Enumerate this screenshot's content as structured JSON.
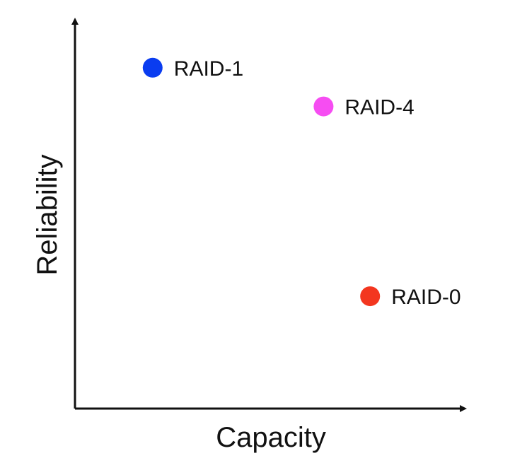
{
  "chart_data": {
    "type": "scatter",
    "xlabel": "Capacity",
    "ylabel": "Reliability",
    "grid": false,
    "xlim": [
      0,
      10
    ],
    "ylim": [
      0,
      10
    ],
    "points": [
      {
        "label": "RAID-1",
        "x": 2.0,
        "y": 8.8,
        "color": "#0a3cf0"
      },
      {
        "label": "RAID-4",
        "x": 6.4,
        "y": 7.8,
        "color": "#f64df2"
      },
      {
        "label": "RAID-0",
        "x": 7.6,
        "y": 2.9,
        "color": "#f3361f"
      }
    ]
  }
}
